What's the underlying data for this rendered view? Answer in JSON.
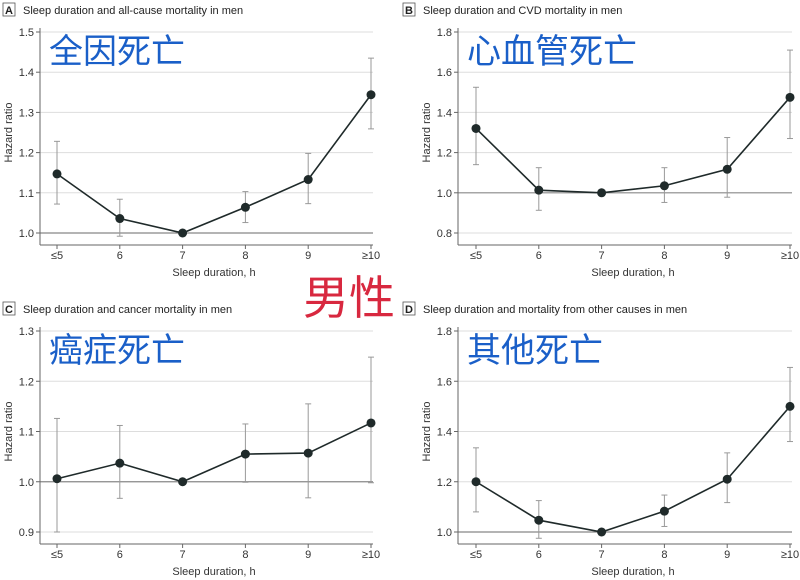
{
  "center_label": "男性",
  "colors": {
    "line": "#1f2a2a",
    "grid": "#dddddd",
    "ref": "#888888",
    "cn_label": "#1a5fc8",
    "center_label": "#d8283f"
  },
  "chart_data": [
    {
      "type": "line",
      "panel": "A",
      "title": "Sleep duration and all-cause mortality in men",
      "overlay_label": "全因死亡",
      "xlabel": "Sleep duration, h",
      "ylabel": "Hazard ratio",
      "categories": [
        "≤5",
        "6",
        "7",
        "8",
        "9",
        "≥10"
      ],
      "values": [
        1.147,
        1.036,
        1.0,
        1.064,
        1.133,
        1.344
      ],
      "ci_low": [
        1.072,
        0.992,
        1.0,
        1.026,
        1.073,
        1.259
      ],
      "ci_high": [
        1.228,
        1.084,
        1.0,
        1.103,
        1.198,
        1.435
      ],
      "ylim": [
        1.0,
        1.5
      ],
      "yticks": [
        1.0,
        1.1,
        1.2,
        1.3,
        1.4,
        1.5
      ],
      "ytick_labels": [
        "1.0",
        "1.1",
        "1.2",
        "1.3",
        "1.4",
        "1.5"
      ],
      "reference": 1.0
    },
    {
      "type": "line",
      "panel": "B",
      "title": "Sleep duration and CVD mortality in men",
      "overlay_label": "心血管死亡",
      "xlabel": "Sleep duration, h",
      "ylabel": "Hazard ratio",
      "categories": [
        "≤5",
        "6",
        "7",
        "8",
        "9",
        "≥10"
      ],
      "values": [
        1.32,
        1.013,
        1.0,
        1.035,
        1.117,
        1.475
      ],
      "ci_low": [
        1.14,
        0.913,
        1.0,
        0.952,
        0.978,
        1.27
      ],
      "ci_high": [
        1.525,
        1.125,
        1.0,
        1.125,
        1.275,
        1.71
      ],
      "ylim": [
        0.8,
        1.8
      ],
      "yticks": [
        0.8,
        1.0,
        1.2,
        1.4,
        1.6,
        1.8
      ],
      "ytick_labels": [
        "0.8",
        "1.0",
        "1.2",
        "1.4",
        "1.6",
        "1.8"
      ],
      "reference": 1.0
    },
    {
      "type": "line",
      "panel": "C",
      "title": "Sleep duration and cancer mortality in men",
      "overlay_label": "癌症死亡",
      "xlabel": "Sleep duration, h",
      "ylabel": "Hazard ratio",
      "categories": [
        "≤5",
        "6",
        "7",
        "8",
        "9",
        "≥10"
      ],
      "values": [
        1.006,
        1.037,
        1.0,
        1.055,
        1.057,
        1.117
      ],
      "ci_low": [
        0.9,
        0.967,
        1.0,
        0.999,
        0.968,
        0.998
      ],
      "ci_high": [
        1.126,
        1.112,
        1.0,
        1.115,
        1.155,
        1.248
      ],
      "ylim": [
        0.9,
        1.3
      ],
      "yticks": [
        0.9,
        1.0,
        1.1,
        1.2,
        1.3
      ],
      "ytick_labels": [
        "0.9",
        "1.0",
        "1.1",
        "1.2",
        "1.3"
      ],
      "reference": 1.0
    },
    {
      "type": "line",
      "panel": "D",
      "title": "Sleep duration and mortality from other causes in men",
      "overlay_label": "其他死亡",
      "xlabel": "Sleep duration, h",
      "ylabel": "Hazard ratio",
      "categories": [
        "≤5",
        "6",
        "7",
        "8",
        "9",
        "≥10"
      ],
      "values": [
        1.2,
        1.047,
        1.0,
        1.083,
        1.21,
        1.5
      ],
      "ci_low": [
        1.08,
        0.975,
        1.0,
        1.022,
        1.117,
        1.36
      ],
      "ci_high": [
        1.335,
        1.125,
        1.0,
        1.147,
        1.315,
        1.655
      ],
      "ylim": [
        1.0,
        1.8
      ],
      "yticks": [
        1.0,
        1.2,
        1.4,
        1.6,
        1.8
      ],
      "ytick_labels": [
        "1.0",
        "1.2",
        "1.4",
        "1.6",
        "1.8"
      ],
      "reference": 1.0
    }
  ]
}
